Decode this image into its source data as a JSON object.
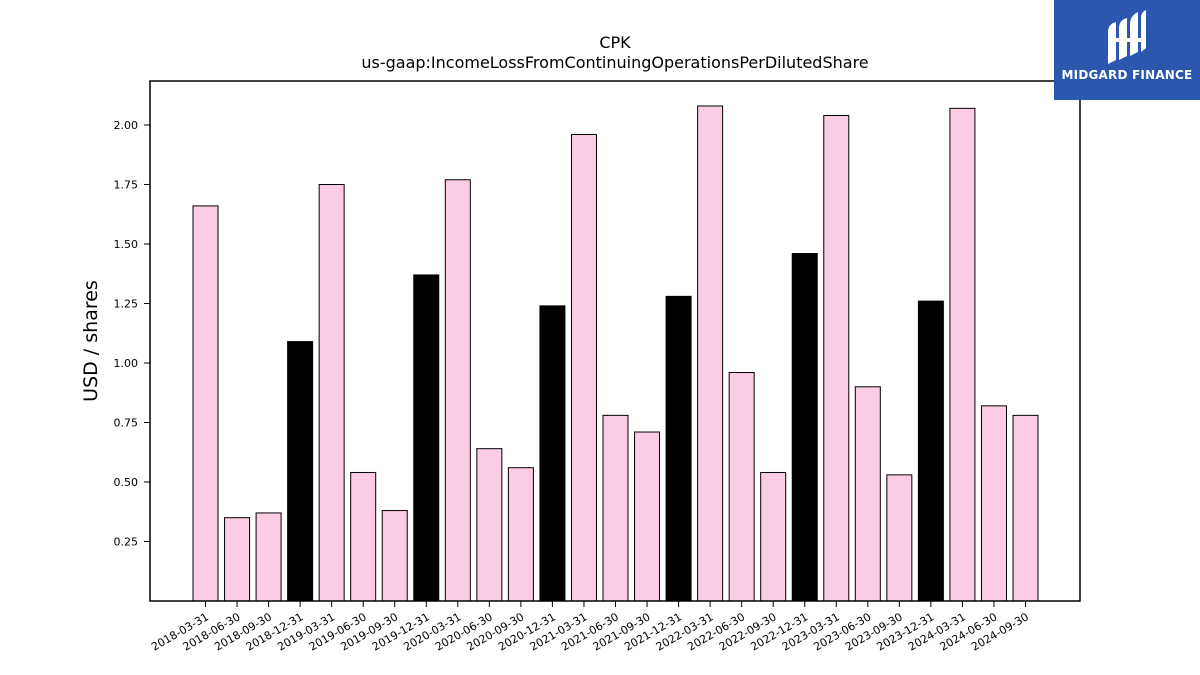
{
  "chart_data": {
    "type": "bar",
    "title": "CPK",
    "subtitle": "us-gaap:IncomeLossFromContinuingOperationsPerDilutedShare",
    "xlabel": "",
    "ylabel": "USD / shares",
    "ylim": [
      0,
      2.2
    ],
    "yticks": [
      "0.25",
      "0.50",
      "0.75",
      "1.00",
      "1.25",
      "1.50",
      "1.75",
      "2.00"
    ],
    "grid": false,
    "categories": [
      "2018-03-31",
      "2018-06-30",
      "2018-09-30",
      "2018-12-31",
      "2019-03-31",
      "2019-06-30",
      "2019-09-30",
      "2019-12-31",
      "2020-03-31",
      "2020-06-30",
      "2020-09-30",
      "2020-12-31",
      "2021-03-31",
      "2021-06-30",
      "2021-09-30",
      "2021-12-31",
      "2022-03-31",
      "2022-06-30",
      "2022-09-30",
      "2022-12-31",
      "2023-03-31",
      "2023-06-30",
      "2023-09-30",
      "2023-12-31",
      "2024-03-31",
      "2024-06-30",
      "2024-09-30"
    ],
    "values": [
      1.66,
      0.35,
      0.37,
      1.09,
      1.75,
      0.54,
      0.38,
      1.37,
      1.77,
      0.64,
      0.56,
      1.24,
      1.96,
      0.78,
      0.71,
      1.28,
      2.08,
      0.96,
      0.54,
      1.46,
      2.04,
      0.9,
      0.53,
      1.26,
      2.07,
      0.82,
      0.78
    ],
    "bar_colors": [
      "#fccbe4",
      "#fccbe4",
      "#fccbe4",
      "#000000",
      "#fccbe4",
      "#fccbe4",
      "#fccbe4",
      "#000000",
      "#fccbe4",
      "#fccbe4",
      "#fccbe4",
      "#000000",
      "#fccbe4",
      "#fccbe4",
      "#fccbe4",
      "#000000",
      "#fccbe4",
      "#fccbe4",
      "#fccbe4",
      "#000000",
      "#fccbe4",
      "#fccbe4",
      "#fccbe4",
      "#000000",
      "#fccbe4",
      "#fccbe4",
      "#fccbe4"
    ]
  },
  "logo": {
    "text": "MIDGARD FINANCE",
    "background": "#2b57ae"
  }
}
